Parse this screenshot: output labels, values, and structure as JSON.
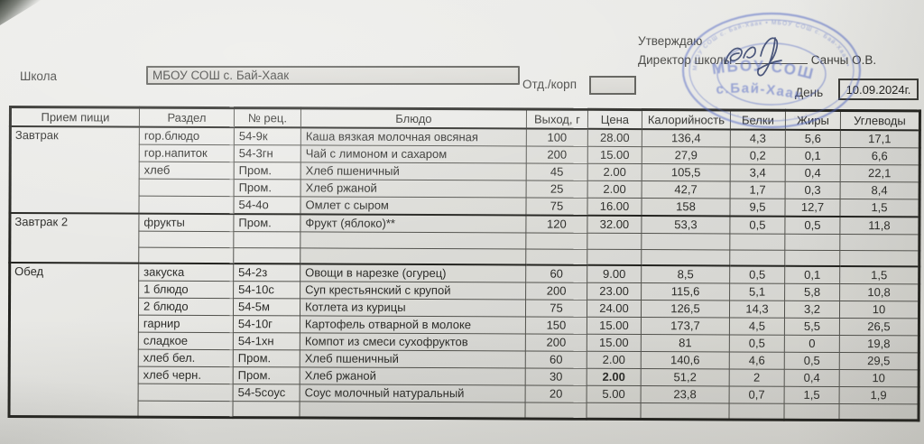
{
  "header": {
    "school_label": "Школа",
    "school_name": "МБОУ СОШ с. Бай-Хаак",
    "dept_label": "Отд./корп",
    "dept_value": "",
    "approve_text": "Утверждаю",
    "director_label": "Директор школы",
    "director_name": "Санчы О.В.",
    "day_label": "День",
    "date_value": "10.09.2024г.",
    "stamp": {
      "color": "#5166c2",
      "line1": "МБОУ СОШ",
      "line2": "с.Бай-Хаак",
      "ring_text": "МБОУ СОШ с. Бай-Хаак  •  МБОУ СОШ с. Бай-Хаак  •"
    }
  },
  "table": {
    "columns": [
      "Прием пищи",
      "Раздел",
      "№ рец.",
      "Блюдо",
      "Выход, г",
      "Цена",
      "Калорийность",
      "Белки",
      "Жиры",
      "Углеводы"
    ],
    "sections": [
      {
        "meal": "Завтрак",
        "rows": [
          [
            "гор.блюдо",
            "54-9к",
            "Каша вязкая молочная овсяная",
            "100",
            "28.00",
            "136,4",
            "4,3",
            "5,6",
            "17,1"
          ],
          [
            "гор.напиток",
            "54-3гн",
            "Чай с лимоном и сахаром",
            "200",
            "15.00",
            "27,9",
            "0,2",
            "0,1",
            "6,6"
          ],
          [
            "хлеб",
            "Пром.",
            "Хлеб пшеничный",
            "45",
            "2.00",
            "105,5",
            "3,4",
            "0,4",
            "22,1"
          ],
          [
            "",
            "Пром.",
            "Хлеб ржаной",
            "25",
            "2.00",
            "42,7",
            "1,7",
            "0,3",
            "8,4"
          ],
          [
            "",
            "54-4о",
            "Омлет с сыром",
            "75",
            "16.00",
            "158",
            "9,5",
            "12,7",
            "1,5"
          ]
        ]
      },
      {
        "meal": "Завтрак 2",
        "rows": [
          [
            "фрукты",
            "Пром.",
            "Фрукт (яблоко)**",
            "120",
            "32.00",
            "53,3",
            "0,5",
            "0,5",
            "11,8"
          ],
          [
            "",
            "",
            "",
            "",
            "",
            "",
            "",
            "",
            ""
          ],
          [
            "",
            "",
            "",
            "",
            "",
            "",
            "",
            "",
            ""
          ]
        ]
      },
      {
        "meal": "Обед",
        "rows": [
          [
            "закуска",
            "54-2з",
            "Овощи в нарезке (огурец)",
            "60",
            "9.00",
            "8,5",
            "0,5",
            "0,1",
            "1,5"
          ],
          [
            "1 блюдо",
            "54-10с",
            "Суп крестьянский с крупой",
            "200",
            "23.00",
            "115,6",
            "5,1",
            "5,8",
            "10,8"
          ],
          [
            "2 блюдо",
            "54-5м",
            "Котлета из курицы",
            "75",
            "24.00",
            "126,5",
            "14,3",
            "3,2",
            "10"
          ],
          [
            "гарнир",
            "54-10г",
            "Картофель отварной  в молоке",
            "150",
            "15.00",
            "173,7",
            "4,5",
            "5,5",
            "26,5"
          ],
          [
            "сладкое",
            "54-1хн",
            "Компот из смеси сухофруктов",
            "200",
            "15.00",
            "81",
            "0,5",
            "0",
            "19,8"
          ],
          [
            "хлеб бел.",
            "Пром.",
            "Хлеб пшеничный",
            "60",
            "2.00",
            "140,6",
            "4,6",
            "0,5",
            "29,5"
          ],
          [
            "хлеб черн.",
            "Пром.",
            "Хлеб ржаной",
            "30",
            "2.00",
            "51,2",
            "2",
            "0,4",
            "10"
          ],
          [
            "",
            "54-5соус",
            "Соус молочный натуральный",
            "20",
            "5.00",
            "23,8",
            "0,7",
            "1,5",
            "1,9"
          ],
          [
            "",
            "",
            "",
            "",
            "",
            "",
            "",
            "",
            ""
          ]
        ]
      }
    ],
    "bold_cells": [
      {
        "section": 2,
        "row": 6,
        "col": 4
      }
    ]
  }
}
